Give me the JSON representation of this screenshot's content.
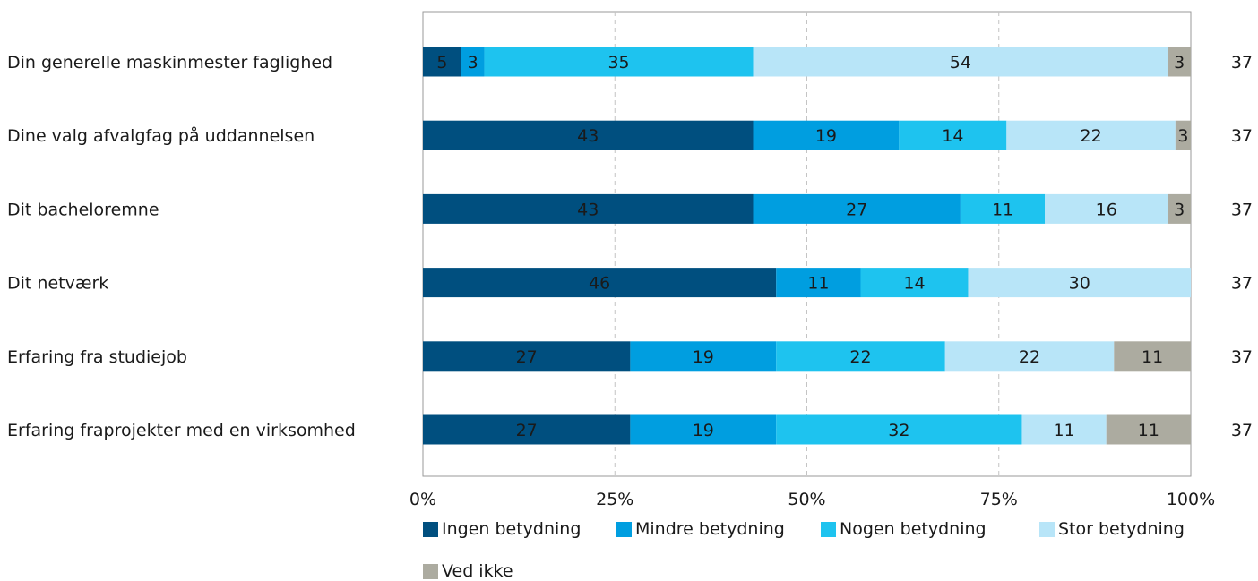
{
  "chart_data": {
    "type": "bar",
    "orientation": "horizontal",
    "stacked": true,
    "categories": [
      "Din generelle maskinmester faglighed",
      "Dine valg afvalgfag på uddannelsen",
      "Dit bacheloremne",
      "Dit netværk",
      "Erfaring fra studiejob",
      "Erfaring fraprojekter med en virksomhed"
    ],
    "series": [
      {
        "name": "Ingen betydning",
        "color": "#004f7f",
        "values": [
          5,
          43,
          43,
          46,
          27,
          27
        ]
      },
      {
        "name": "Mindre betydning",
        "color": "#009ee0",
        "values": [
          3,
          19,
          27,
          11,
          19,
          19
        ]
      },
      {
        "name": "Nogen betydning",
        "color": "#1ec3ef",
        "values": [
          35,
          14,
          11,
          14,
          22,
          32
        ]
      },
      {
        "name": "Stor betydning",
        "color": "#b8e5f8",
        "values": [
          54,
          22,
          16,
          30,
          22,
          11
        ]
      },
      {
        "name": "Ved ikke",
        "color": "#acaba0",
        "values": [
          3,
          3,
          3,
          0,
          11,
          11
        ]
      }
    ],
    "n_values": [
      "37",
      "37",
      "37",
      "37",
      "37",
      "37"
    ],
    "x_ticks": [
      "0%",
      "25%",
      "50%",
      "75%",
      "100%"
    ],
    "xlim": [
      0,
      100
    ],
    "grid": "vertical dashed",
    "legend_position": "bottom",
    "title": "",
    "xlabel": "",
    "ylabel": ""
  }
}
